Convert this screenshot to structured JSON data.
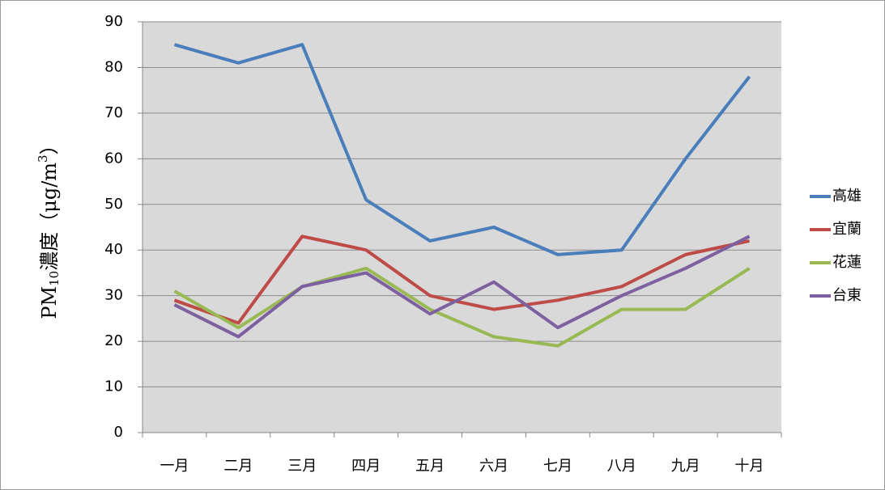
{
  "chart_data": {
    "type": "line",
    "y_label_parts": [
      "PM",
      "10",
      "濃度（μg/m",
      "3",
      "）"
    ],
    "categories": [
      "一月",
      "二月",
      "三月",
      "四月",
      "五月",
      "六月",
      "七月",
      "八月",
      "九月",
      "十月"
    ],
    "series": [
      {
        "name": "高雄",
        "color": "#4a7ebb",
        "values": [
          85,
          81,
          85,
          51,
          42,
          45,
          39,
          40,
          60,
          78
        ]
      },
      {
        "name": "宜蘭",
        "color": "#be4b48",
        "values": [
          29,
          24,
          43,
          40,
          30,
          27,
          29,
          32,
          39,
          42
        ]
      },
      {
        "name": "花蓮",
        "color": "#98b954",
        "values": [
          31,
          23,
          32,
          36,
          27,
          21,
          19,
          27,
          27,
          36
        ]
      },
      {
        "name": "台東",
        "color": "#7d60a0",
        "values": [
          28,
          21,
          32,
          35,
          26,
          33,
          23,
          30,
          36,
          43
        ]
      }
    ],
    "ylim": [
      0,
      90
    ],
    "yticks": [
      0,
      10,
      20,
      30,
      40,
      50,
      60,
      70,
      80,
      90
    ],
    "grid": true,
    "legend": "right"
  }
}
